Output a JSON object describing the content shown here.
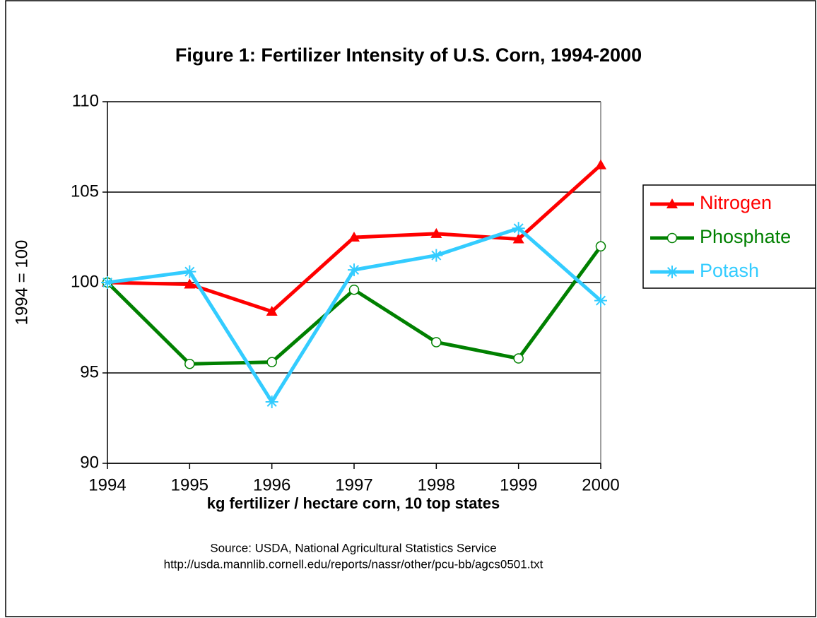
{
  "chart_data": {
    "type": "line",
    "title": "Figure 1:  Fertilizer Intensity of U.S. Corn, 1994-2000",
    "y_label": "1994 = 100",
    "x_label": "kg fertilizer / hectare corn, 10 top states",
    "source": [
      "Source:  USDA, National Agricultural Statistics Service",
      "http://usda.mannlib.cornell.edu/reports/nassr/other/pcu-bb/agcs0501.txt"
    ],
    "categories": [
      "1994",
      "1995",
      "1996",
      "1997",
      "1998",
      "1999",
      "2000"
    ],
    "series": [
      {
        "name": "Nitrogen",
        "color": "#ff0000",
        "marker": "triangle",
        "values": [
          100,
          99.9,
          98.4,
          102.5,
          102.7,
          102.4,
          106.5
        ]
      },
      {
        "name": "Phosphate",
        "color": "#008000",
        "marker": "circle",
        "values": [
          100,
          95.5,
          95.6,
          99.6,
          96.7,
          95.8,
          102.0
        ]
      },
      {
        "name": "Potash",
        "color": "#33ccff",
        "marker": "asterisk",
        "values": [
          100,
          100.6,
          93.4,
          100.7,
          101.5,
          103.0,
          99.0
        ]
      }
    ],
    "ylim": [
      90,
      110
    ],
    "yticks": [
      90,
      95,
      100,
      105,
      110
    ],
    "grid": true,
    "legend": "right"
  }
}
